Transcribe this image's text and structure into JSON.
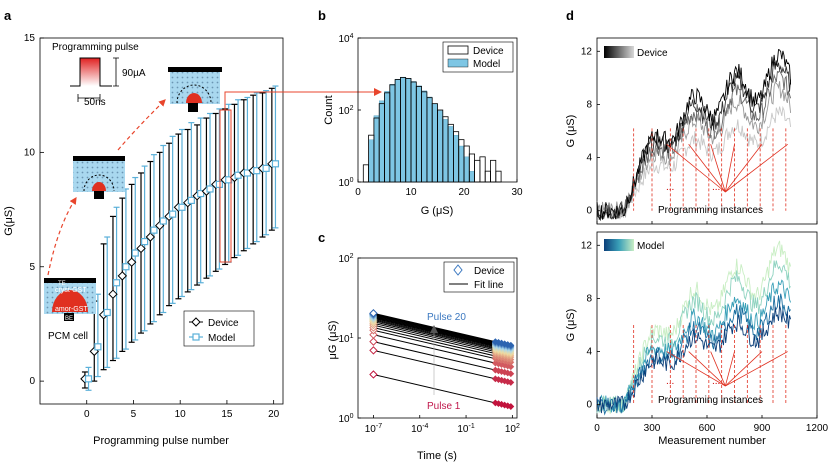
{
  "panel_labels": [
    "a",
    "b",
    "c",
    "d"
  ],
  "colors": {
    "device": "#000000",
    "model_blue": "#5bb0d9",
    "model_fill": "#7ec6e4",
    "arrow_red": "#e8452c",
    "cell_fill": "#a9d8ef",
    "cell_dots": "#6b96b3",
    "amorph_red": "#e03020",
    "pulse20_label": "#3b78c0",
    "pulse1_label": "#c0174b"
  },
  "panel_a": {
    "schematic": {
      "pulse_title": "Programming pulse",
      "pulse_amplitude": "90µA",
      "pulse_width": "50ns",
      "cell_caption": "PCM cell",
      "layer_te": "TE",
      "layer_cryst": "cryst-GST",
      "layer_amor": "amor-GST",
      "layer_be": "BE"
    },
    "legend": [
      "Device",
      "Model"
    ]
  },
  "chart_data": [
    {
      "panel": "a",
      "type": "scatter",
      "xlabel": "Programming pulse number",
      "ylabel": "G(μS)",
      "xlim": [
        -5,
        21
      ],
      "ylim": [
        -1,
        15
      ],
      "xticks": [
        "0",
        "5",
        "10",
        "15",
        "20"
      ],
      "yticks": [
        "0",
        "5",
        "10",
        "15"
      ],
      "x": [
        0,
        1,
        2,
        3,
        4,
        5,
        6,
        7,
        8,
        9,
        10,
        11,
        12,
        13,
        14,
        15,
        16,
        17,
        18,
        19,
        20
      ],
      "series": [
        {
          "name": "Device",
          "mean": [
            0.1,
            1.3,
            2.9,
            3.8,
            4.6,
            5.2,
            5.8,
            6.3,
            6.8,
            7.2,
            7.6,
            7.8,
            8.1,
            8.3,
            8.6,
            8.8,
            8.9,
            9.1,
            9.2,
            9.3,
            9.5
          ],
          "upper": [
            0.4,
            3.5,
            6.0,
            7.2,
            8.0,
            8.6,
            9.1,
            9.6,
            10.0,
            10.4,
            10.8,
            11.0,
            11.2,
            11.5,
            11.7,
            11.9,
            12.1,
            12.3,
            12.5,
            12.6,
            12.8
          ],
          "lower": [
            -0.3,
            0.0,
            0.5,
            0.9,
            1.3,
            1.7,
            2.1,
            2.5,
            2.9,
            3.3,
            3.6,
            3.9,
            4.2,
            4.5,
            4.8,
            5.1,
            5.4,
            5.7,
            6.0,
            6.3,
            6.6
          ]
        },
        {
          "name": "Model",
          "mean": [
            0.1,
            1.5,
            3.0,
            4.3,
            5.0,
            5.6,
            6.1,
            6.6,
            7.0,
            7.3,
            7.6,
            7.9,
            8.2,
            8.4,
            8.6,
            8.8,
            9.0,
            9.1,
            9.2,
            9.3,
            9.5
          ],
          "upper": [
            0.6,
            3.8,
            6.3,
            7.6,
            8.4,
            8.9,
            9.4,
            9.9,
            10.3,
            10.7,
            11.0,
            11.3,
            11.5,
            11.7,
            11.9,
            12.1,
            12.3,
            12.4,
            12.6,
            12.7,
            12.9
          ],
          "lower": [
            -0.4,
            0.2,
            0.6,
            1.0,
            1.4,
            1.8,
            2.2,
            2.6,
            3.0,
            3.4,
            3.7,
            4.0,
            4.3,
            4.6,
            4.9,
            5.2,
            5.5,
            5.8,
            6.1,
            6.4,
            6.7
          ]
        }
      ]
    },
    {
      "panel": "b",
      "type": "bar",
      "xlabel": "G (μS)",
      "ylabel": "Count",
      "xlim": [
        0,
        30
      ],
      "ylim_log10": [
        0,
        4
      ],
      "xticks": [
        "0",
        "10",
        "20",
        "30"
      ],
      "yticks_exp": [
        "0",
        "2",
        "4"
      ],
      "bin_width": 1,
      "categories": [
        1,
        2,
        3,
        4,
        5,
        6,
        7,
        8,
        9,
        10,
        11,
        12,
        13,
        14,
        15,
        16,
        17,
        18,
        19,
        20,
        21,
        22,
        23,
        24,
        25,
        26
      ],
      "series": [
        {
          "name": "Device",
          "values": [
            3,
            20,
            60,
            150,
            300,
            500,
            700,
            800,
            750,
            600,
            450,
            320,
            220,
            150,
            100,
            65,
            40,
            25,
            15,
            10,
            6,
            4,
            5,
            2,
            4,
            2
          ]
        },
        {
          "name": "Model",
          "values": [
            1,
            15,
            70,
            180,
            330,
            520,
            720,
            820,
            760,
            620,
            470,
            340,
            230,
            150,
            95,
            55,
            35,
            20,
            10,
            5,
            2,
            1,
            0,
            0,
            0,
            0
          ]
        }
      ],
      "legend": [
        "Device",
        "Model"
      ]
    },
    {
      "panel": "c",
      "type": "line",
      "xlabel": "Time (s)",
      "ylabel": "μG (μS)",
      "xlim_log10": [
        -8,
        2.3
      ],
      "ylim_log10": [
        0,
        2
      ],
      "xticks_exp": [
        "-7",
        "-4",
        "-1",
        "2"
      ],
      "yticks_exp": [
        "0",
        "1",
        "2"
      ],
      "series_count": 20,
      "start_values": [
        3.5,
        7.0,
        9.0,
        11.0,
        12.5,
        13.5,
        14.5,
        15.3,
        16.0,
        16.6,
        17.1,
        17.6,
        18.0,
        18.4,
        18.8,
        19.2,
        19.5,
        19.8,
        20.1,
        20.4
      ],
      "drift_exponent": 0.05,
      "legend": [
        "Device",
        "Fit line"
      ],
      "annotations": [
        "Pulse 20",
        "Pulse 1"
      ]
    },
    {
      "panel": "d-top",
      "type": "line",
      "xlabel": "",
      "ylabel": "G (μS)",
      "xlim": [
        0,
        1200
      ],
      "ylim": [
        -1,
        13
      ],
      "yticks": [
        "0",
        "4",
        "8",
        "12"
      ],
      "legend": [
        "Device"
      ],
      "annotations": [
        "...",
        "...",
        "Programming instances"
      ]
    },
    {
      "panel": "d-bottom",
      "type": "line",
      "xlabel": "Measurement number",
      "ylabel": "G (μS)",
      "xlim": [
        0,
        1200
      ],
      "ylim": [
        -1,
        13
      ],
      "xticks": [
        "0",
        "300",
        "600",
        "900",
        "1200"
      ],
      "yticks": [
        "0",
        "4",
        "8",
        "12"
      ],
      "legend": [
        "Model"
      ],
      "annotations": [
        "...",
        "...",
        "Programming instances"
      ]
    }
  ]
}
